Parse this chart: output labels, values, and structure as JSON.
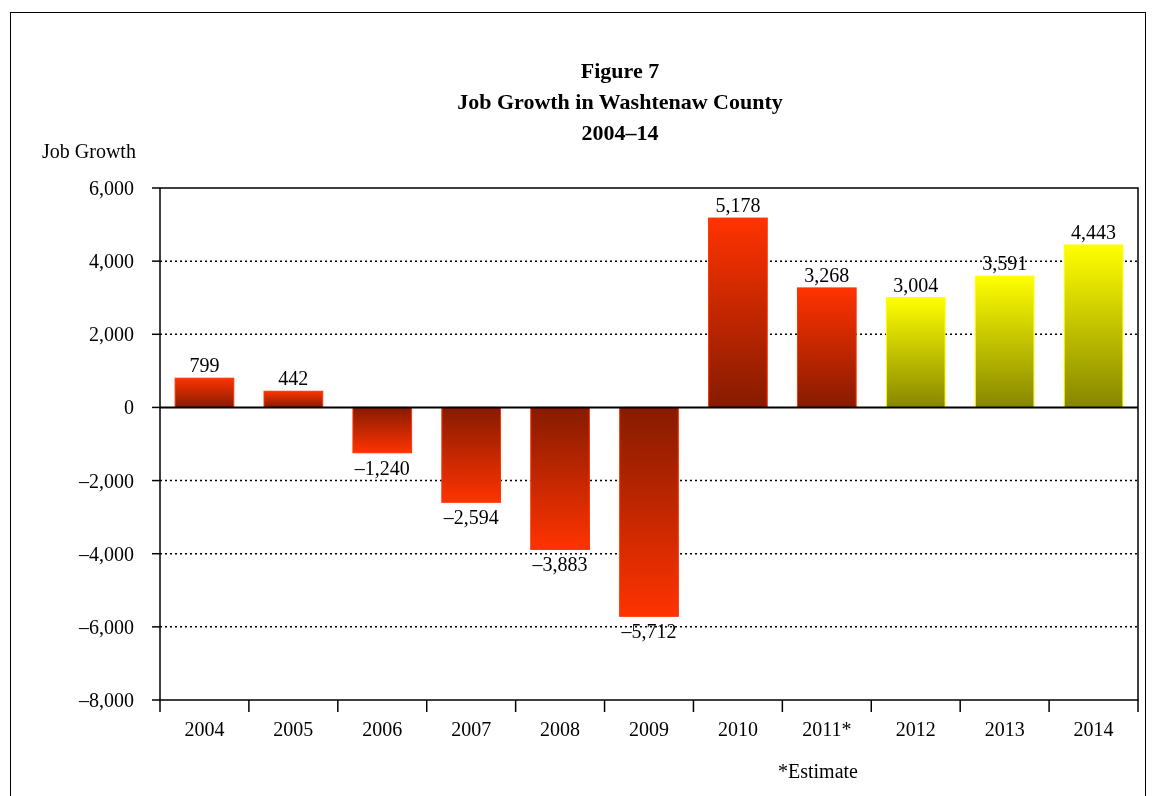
{
  "chart_data": {
    "type": "bar",
    "title": "Figure 7\nJob Growth in Washtenaw County\n2004–14",
    "ylabel": "Job Growth",
    "categories": [
      "2004",
      "2005",
      "2006",
      "2007",
      "2008",
      "2009",
      "2010",
      "2011*",
      "2012",
      "2013",
      "2014"
    ],
    "values": [
      799,
      442,
      -1240,
      -2594,
      -3883,
      -5712,
      5178,
      3268,
      3004,
      3591,
      4443
    ],
    "value_labels": [
      "799",
      "442",
      "–1,240",
      "–2,594",
      "–3,883",
      "–5,712",
      "5,178",
      "3,268",
      "3,004",
      "3,591",
      "4,443"
    ],
    "colors": [
      "#ff3300",
      "#ff3300",
      "#ff3300",
      "#ff3300",
      "#ff3300",
      "#ff3300",
      "#ff3300",
      "#ff3300",
      "#ffff00",
      "#ffff00",
      "#ffff00"
    ],
    "ylim": [
      -8000,
      6000
    ],
    "yticks": [
      {
        "value": -8000,
        "label": "–8,000"
      },
      {
        "value": -6000,
        "label": "–6,000"
      },
      {
        "value": -4000,
        "label": "–4,000"
      },
      {
        "value": -2000,
        "label": "–2,000"
      },
      0,
      {
        "value": 2000,
        "label": "2,000"
      },
      {
        "value": 4000,
        "label": "4,000"
      },
      {
        "value": 6000,
        "label": "6,000"
      }
    ],
    "grid": "y",
    "annotations": [
      "*Estimate"
    ]
  }
}
